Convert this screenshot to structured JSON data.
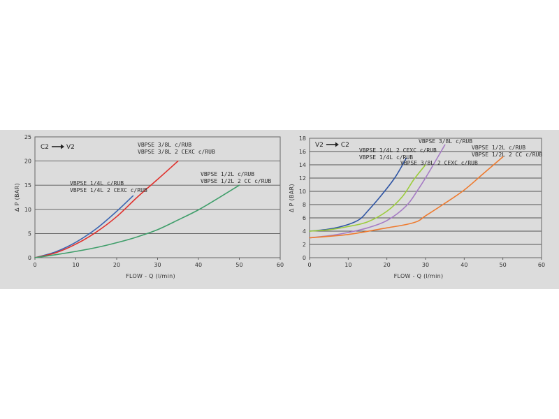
{
  "chart_data": [
    {
      "type": "line",
      "direction": {
        "from": "C2",
        "to": "V2"
      },
      "xlabel": "FLOW - Q (l/min)",
      "ylabel": "Δ P (BAR)",
      "xlim": [
        0,
        60
      ],
      "ylim": [
        0,
        25
      ],
      "xticks": [
        0,
        10,
        20,
        30,
        40,
        50,
        60
      ],
      "yticks": [
        0,
        5,
        10,
        15,
        20,
        25
      ],
      "grid": "horizontal",
      "series": [
        {
          "name": "VBPSE 1/4L c/RUB",
          "color": "#3a64b0",
          "x": [
            0,
            5,
            10,
            15,
            20,
            24
          ],
          "y": [
            0,
            1.2,
            3.2,
            6.0,
            9.6,
            12.8
          ]
        },
        {
          "name": "VBPSE 1/4L 2 CEXC c/RUB",
          "color": "#e0302c",
          "x": [
            0,
            5,
            10,
            15,
            20,
            25,
            30,
            35
          ],
          "y": [
            0,
            1.0,
            2.8,
            5.3,
            8.5,
            12.5,
            16.2,
            20
          ]
        },
        {
          "name": "VBPSE 1/2L c/RUB",
          "color": "#3f9e6a",
          "x": [
            0,
            5,
            10,
            15,
            20,
            25,
            30,
            35,
            40,
            45,
            50
          ],
          "y": [
            0,
            0.6,
            1.3,
            2.1,
            3.1,
            4.3,
            5.8,
            7.8,
            9.9,
            12.4,
            15.0
          ]
        }
      ],
      "legend_groups": [
        {
          "lines": [
            "VBPSE 1/4L c/RUB",
            "VBPSE 1/4L 2 CEXC c/RUB"
          ]
        },
        {
          "lines": [
            "VBPSE 3/8L c/RUB",
            "VBPSE 3/8L 2 CEXC c/RUB"
          ]
        },
        {
          "lines": [
            "VBPSE 1/2L c/RUB",
            "VBPSE 1/2L 2 CC c/RUB"
          ]
        }
      ]
    },
    {
      "type": "line",
      "direction": {
        "from": "V2",
        "to": "C2"
      },
      "xlabel": "FLOW - Q (l/min)",
      "ylabel": "Δ P (BAR)",
      "xlim": [
        0,
        60
      ],
      "ylim": [
        0,
        18
      ],
      "xticks": [
        0,
        10,
        20,
        30,
        40,
        50,
        60
      ],
      "yticks": [
        0,
        2,
        4,
        6,
        8,
        10,
        12,
        14,
        16,
        18
      ],
      "grid": "horizontal",
      "series": [
        {
          "name": "VBPSE 1/4L 2 CEXC c/RUB",
          "color": "#2f55a4",
          "x": [
            0,
            5,
            10,
            13,
            15,
            18,
            22,
            25
          ],
          "y": [
            4.0,
            4.3,
            5.0,
            5.8,
            7.0,
            9.0,
            12.0,
            15.0
          ]
        },
        {
          "name": "VBPSE 1/4L c/RUB",
          "color": "#9ccc3c",
          "x": [
            0,
            5,
            10,
            15,
            20,
            24,
            27,
            30
          ],
          "y": [
            4.0,
            4.2,
            4.7,
            5.4,
            7.0,
            9.2,
            11.8,
            14.0
          ]
        },
        {
          "name": "VBPSE 3/8L 2 CEXC c/RUB",
          "color": "#a57bc4",
          "x": [
            0,
            5,
            10,
            15,
            20,
            25,
            28,
            31,
            35
          ],
          "y": [
            3.0,
            3.3,
            3.8,
            4.5,
            5.6,
            7.8,
            10.2,
            13.0,
            17.0
          ]
        },
        {
          "name": "VBPSE 1/2L c/RUB",
          "color": "#ee7a2e",
          "x": [
            0,
            10,
            20,
            25,
            28,
            30,
            35,
            40,
            45,
            50
          ],
          "y": [
            3.0,
            3.5,
            4.5,
            5.0,
            5.5,
            6.3,
            8.2,
            10.2,
            12.7,
            15.2
          ]
        }
      ],
      "legend_groups": [
        {
          "lines": [
            "VBPSE 3/8L c/RUB"
          ]
        },
        {
          "lines": [
            "VBPSE 1/4L 2 CEXC c/RUB",
            "VBPSE 1/4L c/RUB"
          ]
        },
        {
          "lines": [
            "VBPSE 3/8L 2 CEXC c/RUB"
          ]
        },
        {
          "lines": [
            "VBPSE 1/2L c/RUB",
            "VBPSE 1/2L 2 CC c/RUB"
          ]
        }
      ]
    }
  ]
}
